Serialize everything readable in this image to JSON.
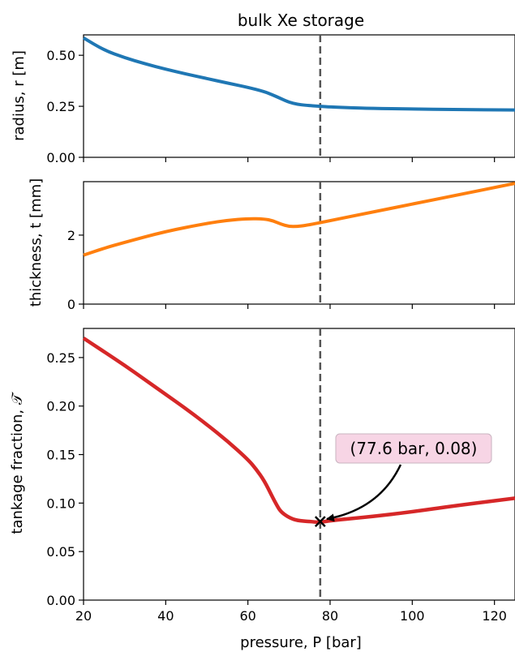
{
  "chart_data": [
    {
      "type": "line",
      "panel": "top",
      "title": "bulk Xe storage",
      "ylabel": "radius, r [m]",
      "xlim": [
        20,
        125
      ],
      "ylim": [
        0,
        0.6
      ],
      "yticks": [
        0.0,
        0.25,
        0.5
      ],
      "ytick_labels": [
        "0.00",
        "0.25",
        "0.50"
      ],
      "x_tick_labels_visible": false,
      "grid": false,
      "vline_x": 77.6,
      "series": [
        {
          "color": "#1f77b4",
          "x": [
            20,
            25,
            30,
            35,
            40,
            45,
            50,
            55,
            60,
            64,
            66,
            68,
            70,
            72,
            74,
            77.6,
            80,
            85,
            90,
            100,
            110,
            125
          ],
          "y": [
            0.585,
            0.525,
            0.488,
            0.458,
            0.432,
            0.408,
            0.386,
            0.364,
            0.343,
            0.322,
            0.306,
            0.288,
            0.27,
            0.26,
            0.255,
            0.25,
            0.247,
            0.243,
            0.24,
            0.237,
            0.234,
            0.232
          ]
        }
      ]
    },
    {
      "type": "line",
      "panel": "middle",
      "ylabel": "thickness, t [mm]",
      "xlim": [
        20,
        125
      ],
      "ylim": [
        0,
        3.55
      ],
      "yticks": [
        0,
        2
      ],
      "ytick_labels": [
        "0",
        "2"
      ],
      "x_tick_labels_visible": false,
      "grid": false,
      "vline_x": 77.6,
      "series": [
        {
          "color": "#ff7f0e",
          "x": [
            20,
            25,
            30,
            40,
            50,
            55,
            60,
            64,
            66,
            68,
            70,
            72,
            74,
            77.6,
            80,
            90,
            100,
            110,
            125
          ],
          "y": [
            1.42,
            1.62,
            1.79,
            2.11,
            2.34,
            2.43,
            2.48,
            2.47,
            2.42,
            2.32,
            2.25,
            2.25,
            2.28,
            2.36,
            2.42,
            2.66,
            2.9,
            3.14,
            3.5
          ]
        }
      ]
    },
    {
      "type": "line",
      "panel": "bottom",
      "xlabel": "pressure, P [bar]",
      "ylabel": "tankage fraction, 𝒯",
      "xlim": [
        20,
        125
      ],
      "ylim": [
        0,
        0.28
      ],
      "xticks": [
        20,
        40,
        60,
        80,
        100,
        120
      ],
      "xtick_labels": [
        "20",
        "40",
        "60",
        "80",
        "100",
        "120"
      ],
      "yticks": [
        0.0,
        0.05,
        0.1,
        0.15,
        0.2,
        0.25
      ],
      "ytick_labels": [
        "0.00",
        "0.05",
        "0.10",
        "0.15",
        "0.20",
        "0.25"
      ],
      "grid": false,
      "vline_x": 77.6,
      "series": [
        {
          "color": "#d62728",
          "x": [
            20,
            25,
            30,
            35,
            40,
            45,
            50,
            55,
            60,
            62,
            64,
            66,
            67,
            68,
            70,
            72,
            75,
            77.6,
            80,
            90,
            100,
            110,
            125
          ],
          "y": [
            0.27,
            0.256,
            0.242,
            0.227,
            0.212,
            0.197,
            0.181,
            0.164,
            0.145,
            0.135,
            0.123,
            0.106,
            0.098,
            0.091,
            0.085,
            0.082,
            0.081,
            0.08,
            0.082,
            0.086,
            0.091,
            0.097,
            0.105
          ]
        }
      ],
      "marker": {
        "x": 77.6,
        "y": 0.081,
        "symbol": "x"
      },
      "annotation": {
        "text": "(77.6 bar, 0.08)",
        "box_color": "#f7d5e5"
      }
    }
  ],
  "colors": {
    "vline": "#555555",
    "axes": "#000000"
  }
}
